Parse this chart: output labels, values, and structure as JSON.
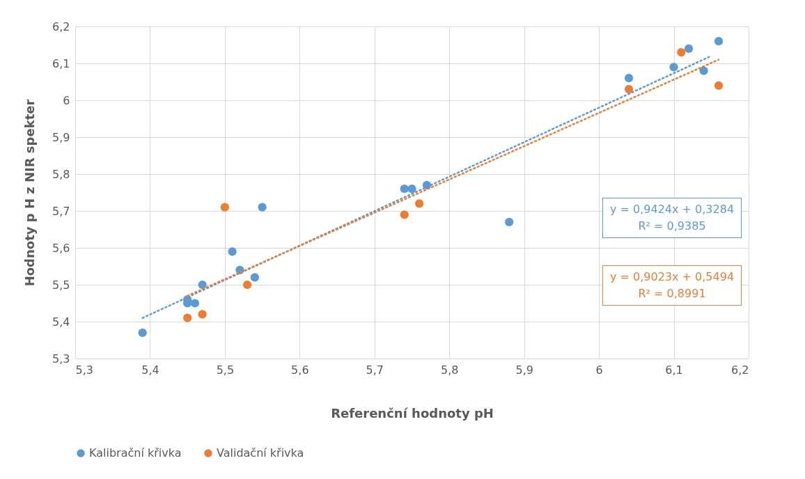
{
  "chart_data": {
    "type": "scatter",
    "xlabel": "Referenční hodnoty pH",
    "ylabel": "Hodnoty p H z  NIR spekter",
    "xlim": [
      5.3,
      6.2
    ],
    "ylim": [
      5.3,
      6.2
    ],
    "xticks": [
      {
        "value": 5.3,
        "label": "5,3"
      },
      {
        "value": 5.4,
        "label": "5,4"
      },
      {
        "value": 5.5,
        "label": "5,5"
      },
      {
        "value": 5.6,
        "label": "5,6"
      },
      {
        "value": 5.7,
        "label": "5,7"
      },
      {
        "value": 5.8,
        "label": "5,8"
      },
      {
        "value": 5.9,
        "label": "5,9"
      },
      6,
      {
        "value": 6.1,
        "label": "6,1"
      },
      {
        "value": 6.2,
        "label": "6,2"
      }
    ],
    "yticks": [
      {
        "value": 5.3,
        "label": "5,3"
      },
      {
        "value": 5.4,
        "label": "5,4"
      },
      {
        "value": 5.5,
        "label": "5,5"
      },
      {
        "value": 5.6,
        "label": "5,6"
      },
      {
        "value": 5.7,
        "label": "5,7"
      },
      {
        "value": 5.8,
        "label": "5,8"
      },
      {
        "value": 5.9,
        "label": "5,9"
      },
      6,
      {
        "value": 6.1,
        "label": "6,1"
      },
      {
        "value": 6.2,
        "label": "6,2"
      }
    ],
    "grid": true,
    "legend": "bottom",
    "marker": "circle",
    "series": [
      {
        "name": "Kalibrační křivka",
        "color": "#5b9bd5",
        "x": [
          5.39,
          5.45,
          5.45,
          5.46,
          5.47,
          5.51,
          5.52,
          5.54,
          5.55,
          5.74,
          5.75,
          5.77,
          5.88,
          6.04,
          6.1,
          6.12,
          6.14,
          6.16
        ],
        "values": [
          5.37,
          5.46,
          5.45,
          5.45,
          5.5,
          5.59,
          5.54,
          5.52,
          5.71,
          5.76,
          5.76,
          5.77,
          5.67,
          6.06,
          6.09,
          6.14,
          6.08,
          6.16
        ]
      },
      {
        "name": "Validační křivka",
        "color": "#ed7d31",
        "x": [
          5.45,
          5.47,
          5.5,
          5.53,
          5.74,
          5.76,
          6.04,
          6.11,
          6.16
        ],
        "values": [
          5.41,
          5.42,
          5.71,
          5.5,
          5.69,
          5.72,
          6.03,
          6.13,
          6.04
        ]
      },
      {
        "type": "line",
        "marker": "none",
        "color": "#5b9bd5",
        "line_style": "dotted",
        "x": [
          5.39,
          6.15
        ],
        "values": [
          5.41,
          6.12
        ]
      },
      {
        "type": "line",
        "marker": "none",
        "color": "#ed7d31",
        "line_style": "dotted",
        "x": [
          5.45,
          6.16
        ],
        "values": [
          5.47,
          6.11
        ]
      }
    ],
    "annotations": [
      "y = 0,9424x + 0,3284\nR² = 0,9385",
      "y = 0,9023x + 0,5494\nR² = 0,8991"
    ]
  }
}
